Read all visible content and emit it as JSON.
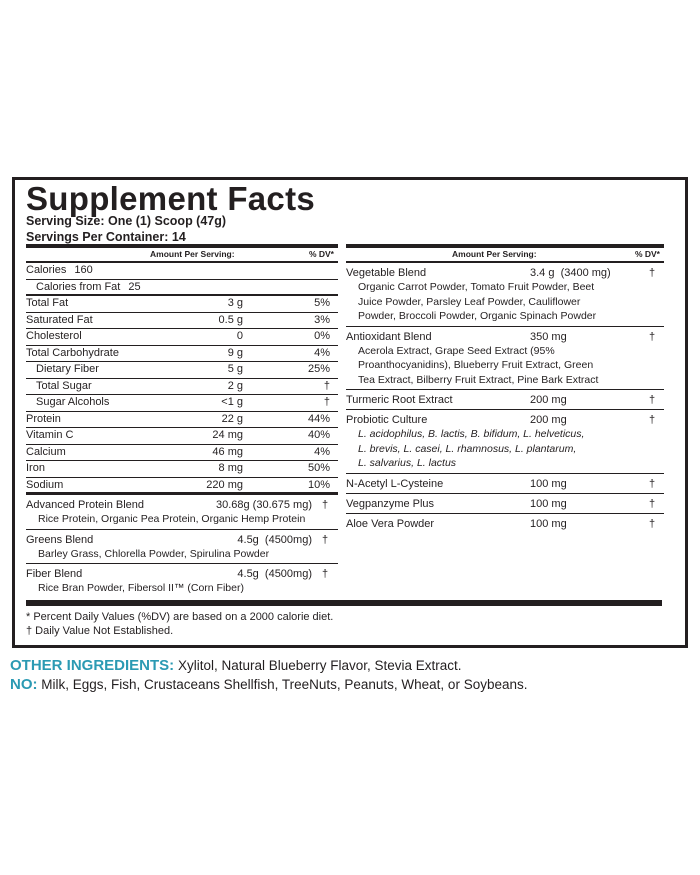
{
  "panel": {
    "title": "Supplement Facts",
    "serving_size": "Serving Size: One (1) Scoop (47g)",
    "servings_per_container": "Servings Per Container: 14",
    "left": {
      "header": {
        "amount": "Amount Per Serving:",
        "dv": "% DV*"
      },
      "rows": [
        {
          "name": "Calories",
          "amount": "160"
        },
        {
          "name": "Calories from Fat",
          "amount": "25"
        },
        {
          "name": "Total Fat",
          "amount": "3 g",
          "dv": "5%"
        },
        {
          "name": "Saturated Fat",
          "amount": "0.5 g",
          "dv": "3%"
        },
        {
          "name": "Cholesterol",
          "amount": "0",
          "dv": "0%"
        },
        {
          "name": "Total Carbohydrate",
          "amount": "9 g",
          "dv": "4%"
        },
        {
          "name": "Dietary Fiber",
          "amount": "5 g",
          "dv": "25%"
        },
        {
          "name": "Total Sugar",
          "amount": "2 g",
          "dv": "†"
        },
        {
          "name": "Sugar Alcohols",
          "amount": "<1 g",
          "dv": "†"
        },
        {
          "name": "Protein",
          "amount": "22 g",
          "dv": "44%"
        },
        {
          "name": "Vitamin C",
          "amount": "24 mg",
          "dv": "40%"
        },
        {
          "name": "Calcium",
          "amount": "46 mg",
          "dv": "4%"
        },
        {
          "name": "Iron",
          "amount": "8 mg",
          "dv": "50%"
        },
        {
          "name": "Sodium",
          "amount": "220 mg",
          "dv": "10%"
        }
      ],
      "blends": [
        {
          "name": "Advanced Protein Blend",
          "amount": "30.68g (30.675 mg)",
          "dv": "†",
          "description": [
            "Rice Protein, Organic Pea Protein, Organic Hemp Protein"
          ]
        },
        {
          "name": "Greens Blend",
          "amount": "4.5g  (4500mg)",
          "dv": "†",
          "description": [
            "Barley Grass, Chlorella Powder, Spirulina Powder"
          ]
        },
        {
          "name": "Fiber Blend",
          "amount": "4.5g  (4500mg)",
          "dv": "†",
          "description": [
            "Rice Bran Powder, Fibersol II™ (Corn Fiber)"
          ]
        }
      ]
    },
    "right": {
      "header": {
        "amount": "Amount Per Serving:",
        "dv": "% DV*"
      },
      "blends": [
        {
          "name": "Vegetable Blend",
          "amount": "3.4 g  (3400 mg)",
          "dv": "†",
          "description": [
            "Organic Carrot Powder, Tomato Fruit Powder, Beet",
            "Juice Powder, Parsley Leaf Powder, Cauliflower",
            "Powder, Broccoli Powder, Organic Spinach Powder"
          ]
        },
        {
          "name": "Antioxidant Blend",
          "amount": "350 mg",
          "dv": "†",
          "description": [
            "Acerola Extract, Grape Seed Extract (95%",
            "Proanthocyanidins), Blueberry Fruit Extract, Green",
            "Tea Extract, Bilberry Fruit Extract, Pine Bark Extract"
          ]
        },
        {
          "name": "Turmeric Root Extract",
          "amount": "200 mg",
          "dv": "†"
        },
        {
          "name": "Probiotic Culture",
          "amount": "200 mg",
          "dv": "†",
          "description": [
            "L. acidophilus, B. lactis, B. bifidum, L. helveticus,",
            "L. brevis, L. casei, L. rhamnosus, L. plantarum,",
            "L. salvarius, L. lactus"
          ]
        },
        {
          "name": "N-Acetyl L-Cysteine",
          "amount": "100 mg",
          "dv": "†"
        },
        {
          "name": "Vegpanzyme Plus",
          "amount": "100 mg",
          "dv": "†"
        },
        {
          "name": "Aloe Vera Powder",
          "amount": "100 mg",
          "dv": "†"
        }
      ]
    },
    "footnotes": [
      "* Percent Daily Values (%DV) are based on a 2000 calorie diet.",
      "† Daily Value Not Established."
    ]
  },
  "other_ingredients": {
    "label": "OTHER INGREDIENTS:",
    "text": "Xylitol, Natural Blueberry Flavor, Stevia Extract."
  },
  "allergens": {
    "label": "NO:",
    "text": "Milk, Eggs, Fish, Crustaceans Shellfish, TreeNuts, Peanuts, Wheat, or Soybeans."
  }
}
